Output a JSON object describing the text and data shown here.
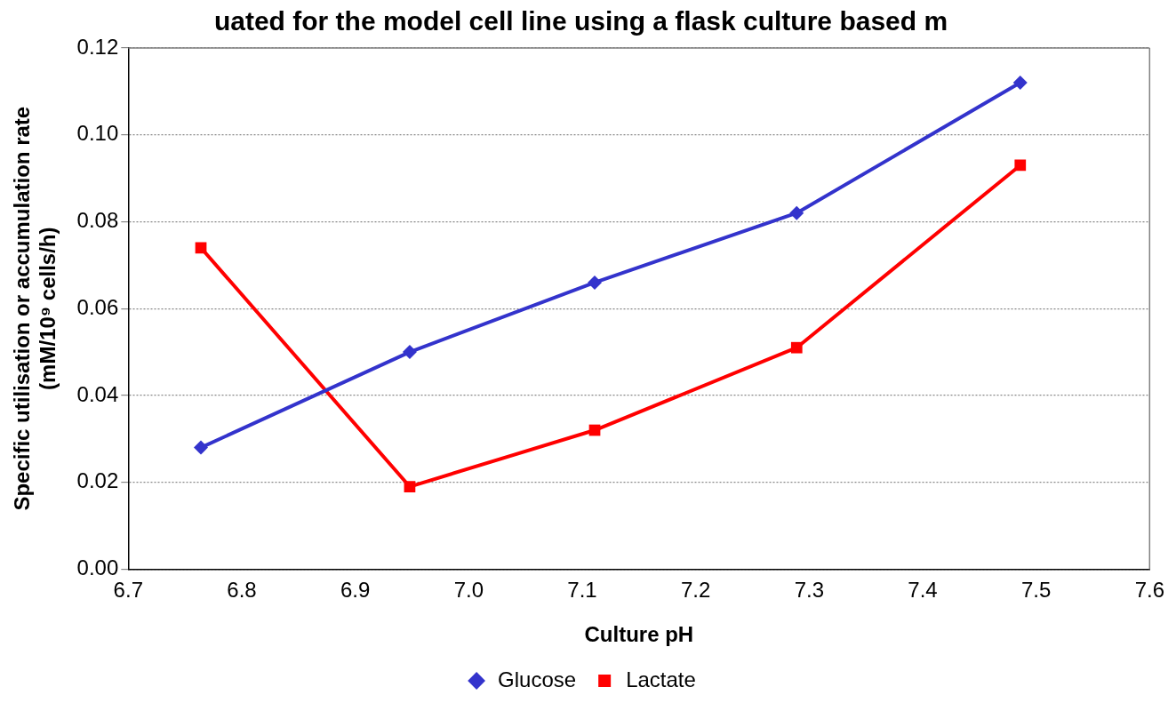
{
  "chart_data": {
    "type": "line",
    "title": "uated for the model cell line using a flask culture based m",
    "xlabel": "Culture pH",
    "ylabel": "Specific utilisation or accumulation rate\n(mM/10⁹ cells/h)",
    "series": [
      {
        "name": "Glucose",
        "color": "#3333cc",
        "marker": "diamond",
        "x": [
          6.764,
          6.948,
          7.111,
          7.289,
          7.486
        ],
        "values": [
          0.028,
          0.05,
          0.066,
          0.082,
          0.112
        ]
      },
      {
        "name": "Lactate",
        "color": "#ff0000",
        "marker": "square",
        "x": [
          6.764,
          6.948,
          7.111,
          7.289,
          7.486
        ],
        "values": [
          0.074,
          0.019,
          0.032,
          0.051,
          0.093
        ]
      }
    ],
    "xlim": [
      6.7,
      7.6
    ],
    "xticks": [
      6.7,
      6.8,
      6.9,
      {
        "value": 7,
        "label": "7.0"
      },
      7.1,
      7.2,
      7.3,
      7.4,
      7.5,
      7.6
    ],
    "ylim": [
      0,
      0.12
    ],
    "yticks": [
      {
        "value": 0,
        "label": "0.00"
      },
      {
        "value": 0.02,
        "label": "0.02"
      },
      {
        "value": 0.04,
        "label": "0.04"
      },
      {
        "value": 0.06,
        "label": "0.06"
      },
      {
        "value": 0.08,
        "label": "0.08"
      },
      {
        "value": 0.1,
        "label": "0.10"
      },
      {
        "value": 0.12,
        "label": "0.12"
      }
    ],
    "grid": "y",
    "legend": "bottom",
    "line_style": "solid"
  }
}
